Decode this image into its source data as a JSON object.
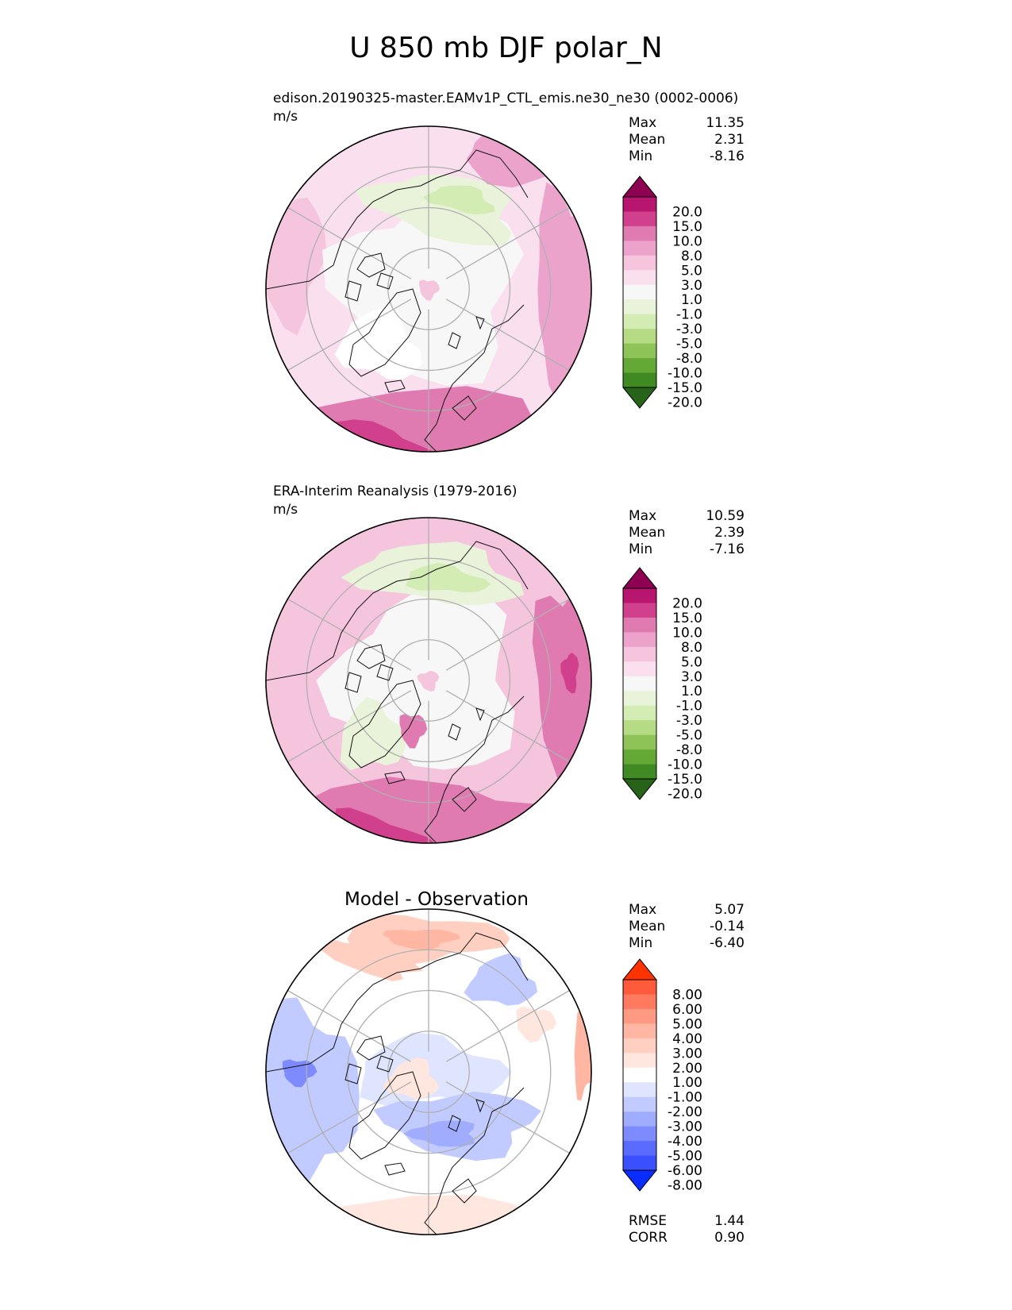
{
  "figure": {
    "title": "U 850 mb DJF polar_N"
  },
  "panels": [
    {
      "id": "model",
      "subtitle": "edison.20190325-master.EAMv1P_CTL_emis.ne30_ne30 (0002-0006)",
      "units": "m/s",
      "stats": {
        "max_label": "Max",
        "max": "11.35",
        "mean_label": "Mean",
        "mean": "2.31",
        "min_label": "Min",
        "min": "-8.16"
      }
    },
    {
      "id": "obs",
      "subtitle": "ERA-Interim Reanalysis (1979-2016)",
      "units": "m/s",
      "stats": {
        "max_label": "Max",
        "max": "10.59",
        "mean_label": "Mean",
        "mean": "2.39",
        "min_label": "Min",
        "min": "-7.16"
      }
    },
    {
      "id": "diff",
      "title": "Model - Observation",
      "stats": {
        "max_label": "Max",
        "max": "5.07",
        "mean_label": "Mean",
        "mean": "-0.14",
        "min_label": "Min",
        "min": "-6.40"
      },
      "metrics": {
        "rmse_label": "RMSE",
        "rmse": "1.44",
        "corr_label": "CORR",
        "corr": "0.90"
      }
    }
  ],
  "chart_data": [
    {
      "type": "heatmap",
      "projection": "north polar stereographic",
      "title": "edison.20190325-master.EAMv1P_CTL_emis.ne30_ne30 (0002-0006)",
      "units": "m/s",
      "colorbar": {
        "levels": [
          "20.0",
          "15.0",
          "10.0",
          "8.0",
          "5.0",
          "3.0",
          "1.0",
          "-1.0",
          "-3.0",
          "-5.0",
          "-8.0",
          "-10.0",
          "-15.0",
          "-20.0"
        ],
        "colors": [
          "#8e0152",
          "#b8166e",
          "#d0408c",
          "#e07bb2",
          "#eba3cc",
          "#f5c5de",
          "#fadfee",
          "#f7f7f7",
          "#e8f3d9",
          "#d3ecb4",
          "#b5dc84",
          "#8ec357",
          "#64a835",
          "#3f8a22",
          "#276419"
        ]
      },
      "stats": {
        "max": 11.35,
        "mean": 2.31,
        "min": -8.16
      }
    },
    {
      "type": "heatmap",
      "projection": "north polar stereographic",
      "title": "ERA-Interim Reanalysis (1979-2016)",
      "units": "m/s",
      "colorbar": {
        "levels": [
          "20.0",
          "15.0",
          "10.0",
          "8.0",
          "5.0",
          "3.0",
          "1.0",
          "-1.0",
          "-3.0",
          "-5.0",
          "-8.0",
          "-10.0",
          "-15.0",
          "-20.0"
        ],
        "colors": [
          "#8e0152",
          "#b8166e",
          "#d0408c",
          "#e07bb2",
          "#eba3cc",
          "#f5c5de",
          "#fadfee",
          "#f7f7f7",
          "#e8f3d9",
          "#d3ecb4",
          "#b5dc84",
          "#8ec357",
          "#64a835",
          "#3f8a22",
          "#276419"
        ]
      },
      "stats": {
        "max": 10.59,
        "mean": 2.39,
        "min": -7.16
      }
    },
    {
      "type": "heatmap",
      "projection": "north polar stereographic",
      "title": "Model - Observation",
      "colorbar": {
        "levels": [
          "8.00",
          "6.00",
          "5.00",
          "4.00",
          "3.00",
          "2.00",
          "1.00",
          "-1.00",
          "-2.00",
          "-3.00",
          "-4.00",
          "-5.00",
          "-6.00",
          "-8.00"
        ],
        "colors": [
          "#ff3300",
          "#ff5a3a",
          "#ff7a5e",
          "#ff9a82",
          "#ffb6a2",
          "#ffcfc2",
          "#ffe6df",
          "#ffffff",
          "#dfe4ff",
          "#c1cbff",
          "#a0adff",
          "#7e8bff",
          "#5a6bff",
          "#3a50ff",
          "#0a2dff"
        ]
      },
      "stats": {
        "max": 5.07,
        "mean": -0.14,
        "min": -6.4
      },
      "metrics": {
        "rmse": 1.44,
        "corr": 0.9
      }
    }
  ]
}
